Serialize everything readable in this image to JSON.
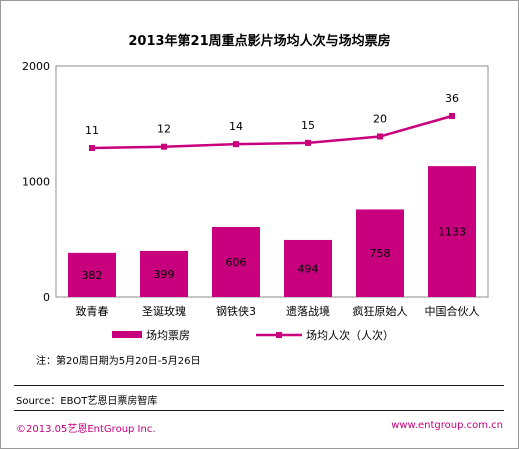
{
  "chart_data": {
    "type": "bar+line",
    "title": "2013年第21周重点影片场均人次与场均票房",
    "categories": [
      "致青春",
      "圣诞玫瑰",
      "钢铁侠3",
      "遗落战境",
      "疯狂原始人",
      "中国合伙人"
    ],
    "series": [
      {
        "name": "场均票房",
        "type": "bar",
        "values": [
          382,
          399,
          606,
          494,
          758,
          1133
        ],
        "color": "#c8007e"
      },
      {
        "name": "场均人次（人次）",
        "type": "line",
        "values": [
          11,
          12,
          14,
          15,
          20,
          36
        ],
        "color": "#c8007e"
      }
    ],
    "yticks": [
      "0",
      "1000",
      "2000"
    ],
    "ylim": [
      0,
      2000
    ],
    "legend_position": "bottom"
  },
  "note": "注：第20周日期为5月20日-5月26日",
  "source": "Source：EBOT艺恩日票房智库",
  "footer": {
    "copyright": "©2013.05艺恩EntGroup Inc.",
    "website": "www.entgroup.com.cn"
  }
}
